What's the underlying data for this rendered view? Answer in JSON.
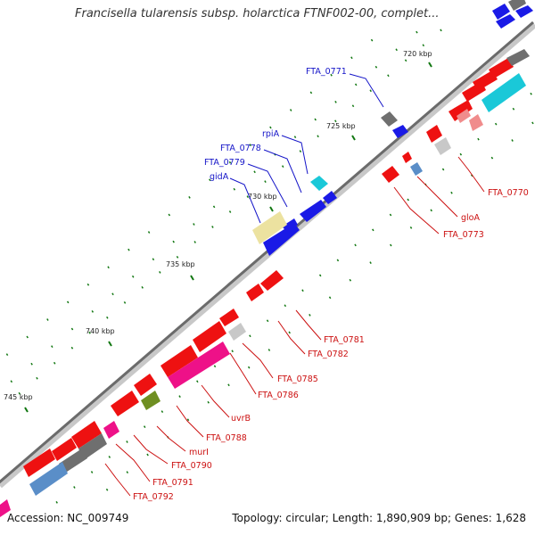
{
  "header": {
    "title": "Francisella tularensis subsp. holarctica FTNF002-00, complet..."
  },
  "footer": {
    "accession": "Accession: NC_009749",
    "summary": "Topology: circular; Length: 1,890,909 bp; Genes: 1,628"
  },
  "scale": {
    "ticks": [
      "720 kbp",
      "725 kbp",
      "730 kbp",
      "735 kbp",
      "740 kbp",
      "745 kbp"
    ]
  },
  "genes": {
    "outer_labels": [
      "FTA_0771",
      "rpiA",
      "FTA_0778",
      "FTA_0779",
      "gidA"
    ],
    "inner_labels": [
      "FTA_0770",
      "gloA",
      "FTA_0773",
      "FTA_0781",
      "FTA_0782",
      "FTA_0785",
      "FTA_0786",
      "uvrB",
      "FTA_0788",
      "murI",
      "FTA_0790",
      "FTA_0791",
      "FTA_0792"
    ]
  },
  "colors": {
    "backbone": "#6b6b6b",
    "label_forward": "#1515c8",
    "label_reverse": "#cc1111",
    "gene_red": "#ee1111",
    "gene_blue": "#1a1ae6",
    "gene_gray": "#6f6f6f",
    "gene_cyan": "#1ac8d8",
    "gene_yellow": "#ece2a0",
    "gene_magenta": "#ee1188",
    "gene_steel": "#5a8ec8",
    "gene_olive": "#6f8f22",
    "gene_pink": "#f08c8c",
    "tick_green": "#117711"
  }
}
